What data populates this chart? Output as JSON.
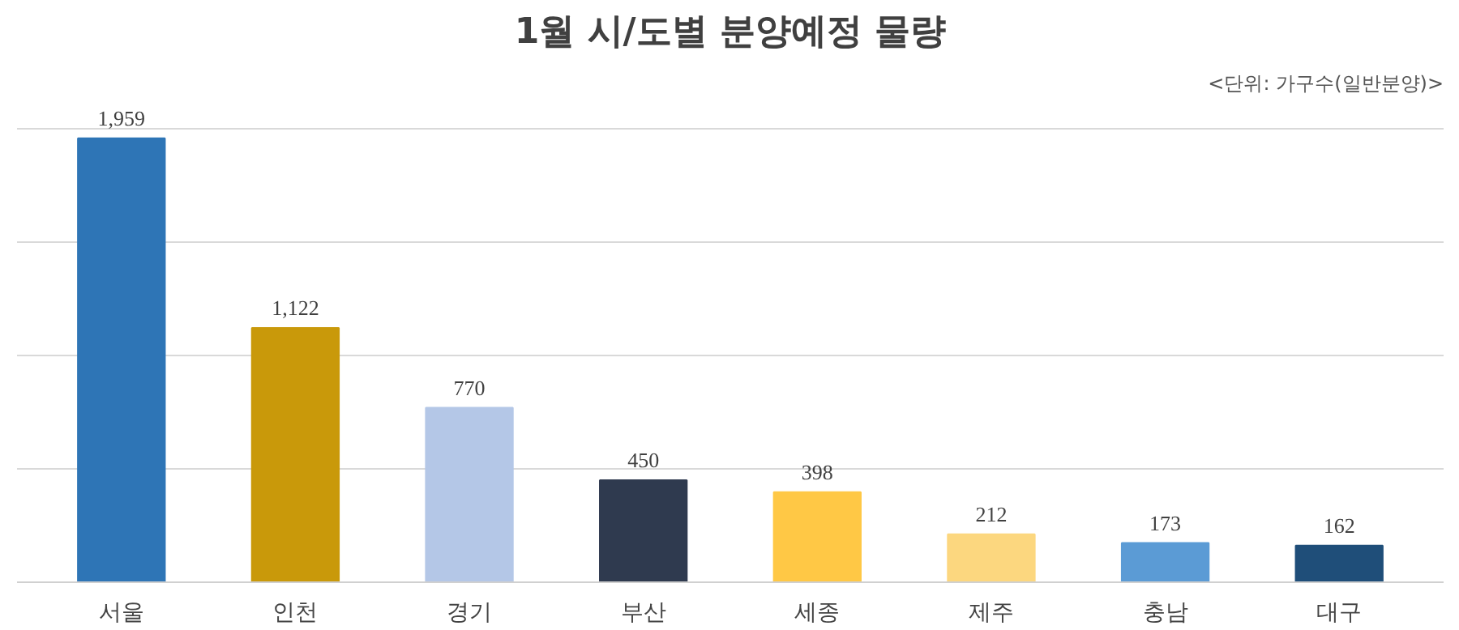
{
  "chart_data": {
    "type": "bar",
    "title": "1월 시/도별 분양예정 물량",
    "subtitle": "<단위: 가구수(일반분양)>",
    "categories": [
      "서울",
      "인천",
      "경기",
      "부산",
      "세종",
      "제주",
      "충남",
      "대구"
    ],
    "values": [
      1959,
      1122,
      770,
      450,
      398,
      212,
      173,
      162
    ],
    "colors": [
      "#2e75b6",
      "#c9990a",
      "#b4c7e7",
      "#2f3a4f",
      "#ffc845",
      "#fcd77f",
      "#5b9bd5",
      "#1f4e79"
    ],
    "value_labels": [
      "1,959",
      "1,122",
      "770",
      "450",
      "398",
      "212",
      "173",
      "162"
    ],
    "grid": "y",
    "tick_labels": "x"
  }
}
